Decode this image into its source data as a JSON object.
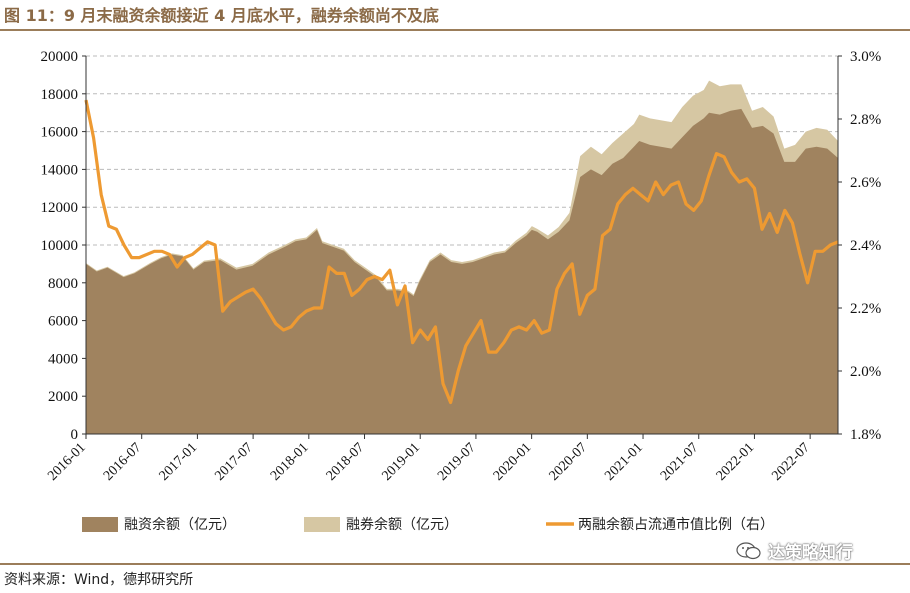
{
  "title": "图 11：9 月末融资余额接近 4 月底水平，融券余额尚不及底",
  "source": "资料来源：Wind，德邦研究所",
  "watermark": "达策略知行",
  "colors": {
    "financing": "#A0835F",
    "lending": "#D6C7A3",
    "ratio": "#EE9A32",
    "grid": "#BBBBBB",
    "title": "#8B6A47"
  },
  "chart_data": {
    "type": "area",
    "y_left": {
      "range": [
        0,
        20000
      ],
      "ticks": [
        "0",
        "2000",
        "4000",
        "6000",
        "8000",
        "10000",
        "12000",
        "14000",
        "16000",
        "18000",
        "20000"
      ]
    },
    "y_right": {
      "range": [
        1.8,
        3.0
      ],
      "ticks": [
        "1.8%",
        "2.0%",
        "2.2%",
        "2.4%",
        "2.6%",
        "2.8%",
        "3.0%"
      ]
    },
    "x_ticks": [
      "2016-01",
      "2016-07",
      "2017-01",
      "2017-07",
      "2018-01",
      "2018-07",
      "2019-01",
      "2019-07",
      "2020-01",
      "2020-07",
      "2021-01",
      "2021-07",
      "2022-01",
      "2022-07"
    ],
    "x_month_start": "2016-01",
    "grid": "horizontal dashed",
    "legend_position": "bottom",
    "series": [
      {
        "name": "融资余额（亿元）",
        "axis": "left",
        "kind": "area",
        "points": [
          [
            0,
            9000
          ],
          [
            2,
            8600
          ],
          [
            4,
            8800
          ],
          [
            7,
            8300
          ],
          [
            9,
            8500
          ],
          [
            12,
            9000
          ],
          [
            14,
            9300
          ],
          [
            16,
            9500
          ],
          [
            18,
            9400
          ],
          [
            20,
            8700
          ],
          [
            22,
            9100
          ],
          [
            25,
            9200
          ],
          [
            28,
            8700
          ],
          [
            31,
            8900
          ],
          [
            34,
            9500
          ],
          [
            37,
            9900
          ],
          [
            39,
            10200
          ],
          [
            41,
            10300
          ],
          [
            43,
            10800
          ],
          [
            44,
            10100
          ],
          [
            46,
            9900
          ],
          [
            48,
            9700
          ],
          [
            50,
            9100
          ],
          [
            52,
            8700
          ],
          [
            54,
            8300
          ],
          [
            56,
            7600
          ],
          [
            58,
            7600
          ],
          [
            60,
            7500
          ],
          [
            61,
            7300
          ],
          [
            62,
            8000
          ],
          [
            64,
            9100
          ],
          [
            66,
            9500
          ],
          [
            68,
            9100
          ],
          [
            70,
            9000
          ],
          [
            72,
            9100
          ],
          [
            74,
            9300
          ],
          [
            76,
            9500
          ],
          [
            78,
            9600
          ],
          [
            80,
            10100
          ],
          [
            82,
            10500
          ],
          [
            83,
            10800
          ],
          [
            84,
            10700
          ],
          [
            86,
            10300
          ],
          [
            88,
            10700
          ],
          [
            90,
            11300
          ],
          [
            92,
            13600
          ],
          [
            94,
            14000
          ],
          [
            96,
            13700
          ],
          [
            98,
            14300
          ],
          [
            100,
            14600
          ],
          [
            102,
            15200
          ],
          [
            103,
            15500
          ],
          [
            105,
            15300
          ],
          [
            107,
            15200
          ],
          [
            109,
            15100
          ],
          [
            111,
            15700
          ],
          [
            113,
            16300
          ],
          [
            115,
            16700
          ],
          [
            116,
            17000
          ],
          [
            118,
            16900
          ],
          [
            120,
            17100
          ],
          [
            122,
            17200
          ],
          [
            124,
            16200
          ],
          [
            126,
            16300
          ],
          [
            128,
            15900
          ],
          [
            130,
            14400
          ],
          [
            132,
            14400
          ],
          [
            134,
            15100
          ],
          [
            136,
            15200
          ],
          [
            138,
            15100
          ],
          [
            140,
            14600
          ]
        ]
      },
      {
        "name": "融券余额（亿元）",
        "axis": "left",
        "kind": "stacked-area",
        "points": [
          [
            0,
            9050
          ],
          [
            2,
            8650
          ],
          [
            4,
            8850
          ],
          [
            7,
            8350
          ],
          [
            9,
            8550
          ],
          [
            12,
            9060
          ],
          [
            14,
            9360
          ],
          [
            16,
            9560
          ],
          [
            18,
            9460
          ],
          [
            20,
            8760
          ],
          [
            22,
            9170
          ],
          [
            25,
            9290
          ],
          [
            28,
            8800
          ],
          [
            31,
            9000
          ],
          [
            34,
            9600
          ],
          [
            37,
            10000
          ],
          [
            39,
            10300
          ],
          [
            41,
            10400
          ],
          [
            43,
            10900
          ],
          [
            44,
            10200
          ],
          [
            46,
            10000
          ],
          [
            48,
            9800
          ],
          [
            50,
            9200
          ],
          [
            52,
            8800
          ],
          [
            54,
            8400
          ],
          [
            56,
            7680
          ],
          [
            58,
            7680
          ],
          [
            60,
            7580
          ],
          [
            61,
            7380
          ],
          [
            62,
            8100
          ],
          [
            64,
            9200
          ],
          [
            66,
            9600
          ],
          [
            68,
            9200
          ],
          [
            70,
            9100
          ],
          [
            72,
            9200
          ],
          [
            74,
            9400
          ],
          [
            76,
            9600
          ],
          [
            78,
            9700
          ],
          [
            80,
            10230
          ],
          [
            82,
            10650
          ],
          [
            83,
            11000
          ],
          [
            84,
            10850
          ],
          [
            86,
            10500
          ],
          [
            88,
            10950
          ],
          [
            90,
            11700
          ],
          [
            92,
            14700
          ],
          [
            94,
            15200
          ],
          [
            96,
            14800
          ],
          [
            98,
            15400
          ],
          [
            100,
            15900
          ],
          [
            102,
            16400
          ],
          [
            103,
            16900
          ],
          [
            105,
            16700
          ],
          [
            107,
            16600
          ],
          [
            109,
            16500
          ],
          [
            111,
            17300
          ],
          [
            113,
            17900
          ],
          [
            115,
            18200
          ],
          [
            116,
            18700
          ],
          [
            118,
            18400
          ],
          [
            120,
            18500
          ],
          [
            122,
            18500
          ],
          [
            124,
            17100
          ],
          [
            126,
            17300
          ],
          [
            128,
            16800
          ],
          [
            130,
            15100
          ],
          [
            132,
            15300
          ],
          [
            134,
            16000
          ],
          [
            136,
            16200
          ],
          [
            138,
            16100
          ],
          [
            140,
            15500
          ]
        ]
      },
      {
        "name": "两融余额占流通市值比例（右）",
        "axis": "right",
        "kind": "line",
        "points": [
          [
            0,
            2.86
          ],
          [
            1,
            2.74
          ],
          [
            2,
            2.56
          ],
          [
            3,
            2.46
          ],
          [
            4,
            2.45
          ],
          [
            5,
            2.4
          ],
          [
            6,
            2.36
          ],
          [
            7,
            2.36
          ],
          [
            9,
            2.38
          ],
          [
            10,
            2.38
          ],
          [
            11,
            2.37
          ],
          [
            12,
            2.33
          ],
          [
            13,
            2.36
          ],
          [
            14,
            2.37
          ],
          [
            15,
            2.39
          ],
          [
            16,
            2.41
          ],
          [
            17,
            2.4
          ],
          [
            18,
            2.19
          ],
          [
            19,
            2.22
          ],
          [
            21,
            2.25
          ],
          [
            22,
            2.26
          ],
          [
            23,
            2.23
          ],
          [
            24,
            2.19
          ],
          [
            25,
            2.15
          ],
          [
            26,
            2.13
          ],
          [
            27,
            2.14
          ],
          [
            28,
            2.17
          ],
          [
            29,
            2.19
          ],
          [
            30,
            2.2
          ],
          [
            31,
            2.2
          ],
          [
            32,
            2.33
          ],
          [
            33,
            2.31
          ],
          [
            34,
            2.31
          ],
          [
            35,
            2.24
          ],
          [
            36,
            2.26
          ],
          [
            37,
            2.29
          ],
          [
            38,
            2.3
          ],
          [
            39,
            2.29
          ],
          [
            40,
            2.32
          ],
          [
            41,
            2.21
          ],
          [
            42,
            2.27
          ],
          [
            43,
            2.09
          ],
          [
            44,
            2.13
          ],
          [
            45,
            2.1
          ],
          [
            46,
            2.14
          ],
          [
            47,
            1.96
          ],
          [
            48,
            1.9
          ],
          [
            49,
            2.0
          ],
          [
            50,
            2.08
          ],
          [
            51,
            2.12
          ],
          [
            52,
            2.16
          ],
          [
            53,
            2.06
          ],
          [
            54,
            2.06
          ],
          [
            55,
            2.09
          ],
          [
            56,
            2.13
          ],
          [
            57,
            2.14
          ],
          [
            58,
            2.13
          ],
          [
            59,
            2.16
          ],
          [
            60,
            2.12
          ],
          [
            61,
            2.13
          ],
          [
            62,
            2.26
          ],
          [
            63,
            2.31
          ],
          [
            64,
            2.34
          ],
          [
            65,
            2.18
          ],
          [
            66,
            2.24
          ],
          [
            67,
            2.26
          ],
          [
            68,
            2.43
          ],
          [
            69,
            2.45
          ],
          [
            70,
            2.53
          ],
          [
            71,
            2.56
          ],
          [
            72,
            2.58
          ],
          [
            73,
            2.56
          ],
          [
            74,
            2.54
          ],
          [
            75,
            2.6
          ],
          [
            76,
            2.56
          ],
          [
            77,
            2.59
          ],
          [
            78,
            2.6
          ],
          [
            79,
            2.53
          ],
          [
            80,
            2.51
          ],
          [
            81,
            2.54
          ],
          [
            82,
            2.62
          ],
          [
            83,
            2.69
          ],
          [
            84,
            2.68
          ],
          [
            85,
            2.63
          ],
          [
            86,
            2.6
          ],
          [
            87,
            2.61
          ],
          [
            88,
            2.58
          ],
          [
            89,
            2.45
          ],
          [
            90,
            2.5
          ],
          [
            91,
            2.44
          ],
          [
            92,
            2.51
          ],
          [
            93,
            2.47
          ],
          [
            94,
            2.37
          ],
          [
            95,
            2.28
          ],
          [
            96,
            2.38
          ],
          [
            97,
            2.38
          ],
          [
            98,
            2.4
          ],
          [
            99,
            2.41
          ]
        ],
        "points_scale": "monthly index from 2016-01 (0..~81), mapped to same time range"
      }
    ]
  },
  "legend": [
    {
      "label": "融资余额（亿元）",
      "swatch": "area-financing"
    },
    {
      "label": "融券余额（亿元）",
      "swatch": "area-lending"
    },
    {
      "label": "两融余额占流通市值比例（右）",
      "swatch": "line-ratio"
    }
  ]
}
